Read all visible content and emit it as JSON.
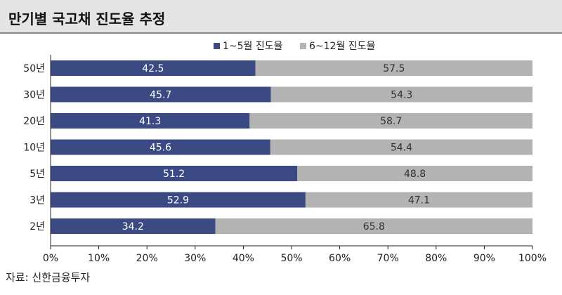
{
  "header": {
    "title": "만기별 국고채 진도율 추정"
  },
  "source": "자료: 신한금융투자",
  "chart_data": {
    "type": "bar",
    "orientation": "horizontal",
    "stacked": true,
    "categories": [
      "50년",
      "30년",
      "20년",
      "10년",
      "5년",
      "3년",
      "2년"
    ],
    "series": [
      {
        "name": "1~5월 진도율",
        "values": [
          42.5,
          45.7,
          41.3,
          45.6,
          51.2,
          52.9,
          34.2
        ],
        "color": "#3b4a82"
      },
      {
        "name": "6~12월 진도율",
        "values": [
          57.5,
          54.3,
          58.7,
          54.4,
          48.8,
          47.1,
          65.8
        ],
        "color": "#b3b3b3"
      }
    ],
    "xlim": [
      0,
      100
    ],
    "x_ticks": [
      "0%",
      "10%",
      "20%",
      "30%",
      "40%",
      "50%",
      "60%",
      "70%",
      "80%",
      "90%",
      "100%"
    ],
    "legend": "top-center",
    "grid": false
  }
}
